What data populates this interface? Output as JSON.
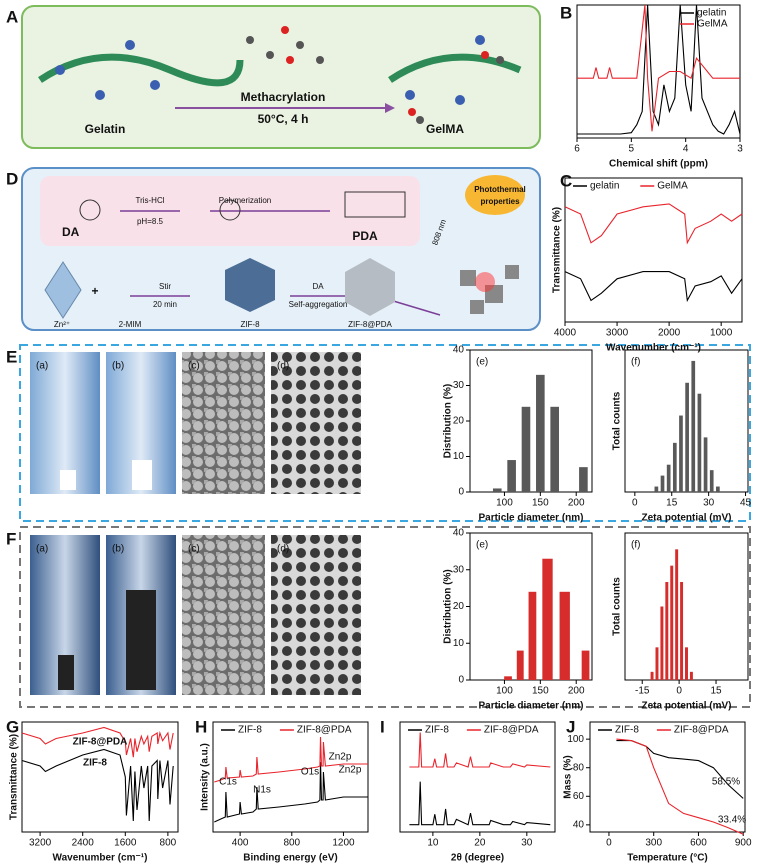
{
  "figure": {
    "panel_labels": [
      "A",
      "B",
      "C",
      "D",
      "E",
      "F",
      "G",
      "H",
      "I",
      "J"
    ],
    "A": {
      "left": "Gelatin",
      "arrow_top": "Methacrylation",
      "arrow_bottom": "50°C, 4 h",
      "right": "GelMA"
    },
    "D": {
      "da": "DA",
      "tris": "Tris-HCl",
      "ph": "pH=8.5",
      "poly": "Polymerization",
      "pda": "PDA",
      "zn": "Zn²⁺",
      "mim": "2-MIM",
      "stir": "Stir",
      "time": "20 min",
      "zif": "ZIF-8",
      "da2": "DA",
      "self": "Self-aggregation",
      "zifpda": "ZIF-8@PDA",
      "nm": "808 nm",
      "photo1": "Photothermal",
      "photo2": "properties",
      "plus": "+"
    },
    "E": {
      "image_labels": [
        "(a)",
        "(b)",
        "(c)",
        "(d)"
      ]
    },
    "F": {
      "image_labels": [
        "(a)",
        "(b)",
        "(c)",
        "(d)"
      ]
    }
  },
  "chart_data": [
    {
      "type": "line",
      "xlabel": "Chemical shift (ppm)",
      "xlim": [
        6,
        3
      ],
      "ylim": [
        0,
        10
      ],
      "xticks": [
        6,
        5,
        4,
        3
      ],
      "legend": "upper right",
      "series": [
        {
          "name": "gelatin",
          "color": "#000000",
          "x": [
            6,
            5.5,
            5.2,
            5,
            4.9,
            4.8,
            4.7,
            4.6,
            4.5,
            4.4,
            4.3,
            4.2,
            4.1,
            4,
            3.9,
            3.8,
            3.7,
            3.6,
            3.5,
            3.4,
            3.3,
            3.2,
            3.1,
            3
          ],
          "values": [
            0.3,
            0.3,
            0.3,
            0.4,
            1,
            2,
            10,
            2,
            1,
            4,
            2,
            3,
            10,
            4,
            2,
            10,
            3,
            2,
            1,
            0.5,
            0.3,
            1,
            2,
            0.3
          ]
        },
        {
          "name": "GelMA",
          "color": "#e8242c",
          "x": [
            6,
            5.7,
            5.65,
            5.6,
            5.45,
            5.4,
            5.35,
            4.9,
            4.75,
            4.7,
            4.62,
            4.5,
            4.3,
            4.1,
            3.9,
            3.8,
            3.5,
            3
          ],
          "values": [
            4.5,
            4.5,
            5.3,
            4.5,
            4.5,
            5.3,
            4.5,
            4.5,
            10,
            4.5,
            0.5,
            4.5,
            5,
            5,
            4.5,
            6,
            4.5,
            4.5
          ]
        }
      ]
    },
    {
      "type": "line",
      "xlabel": "Wavenumber (cm⁻¹)",
      "ylabel": "Transmittance (%)",
      "xlim": [
        4000,
        600
      ],
      "ylim": [
        0,
        10
      ],
      "xticks": [
        4000,
        3000,
        2000,
        1000
      ],
      "legend": "top",
      "series": [
        {
          "name": "gelatin",
          "color": "#000000",
          "x": [
            4000,
            3700,
            3500,
            3300,
            3000,
            2500,
            2000,
            1700,
            1650,
            1500,
            1200,
            1000,
            800,
            600
          ],
          "values": [
            3.5,
            3,
            1.5,
            2,
            3,
            3.5,
            3.5,
            3,
            1.5,
            2.5,
            2.8,
            3.2,
            2,
            3
          ]
        },
        {
          "name": "GelMA",
          "color": "#e8242c",
          "x": [
            4000,
            3700,
            3500,
            3300,
            3000,
            2500,
            2000,
            1700,
            1650,
            1500,
            1200,
            1000,
            800,
            600
          ],
          "values": [
            8,
            7.5,
            5.5,
            6,
            7.5,
            8,
            8.2,
            7.5,
            5.5,
            6.5,
            7,
            7.5,
            7,
            7.5
          ]
        }
      ]
    },
    {
      "type": "histogram",
      "label": "(e)",
      "xlabel": "Particle diameter (nm)",
      "ylabel": "Distribution (%)",
      "xlim": [
        52,
        222
      ],
      "ylim": [
        0,
        40
      ],
      "xticks": [
        100,
        150,
        200
      ],
      "yticks": [
        0,
        10,
        20,
        30,
        40
      ],
      "color": "#595959",
      "bins": [
        80,
        100,
        120,
        140,
        160,
        180,
        200,
        220
      ],
      "counts": [
        1,
        9,
        24,
        33,
        24,
        0,
        7
      ]
    },
    {
      "type": "histogram",
      "label": "(f)",
      "xlabel": "Zeta potential (mV)",
      "ylabel": "Total counts",
      "xlim": [
        -4,
        46
      ],
      "ylim": [
        0,
        26
      ],
      "xticks": [
        0,
        15,
        30,
        45
      ],
      "color": "#595959",
      "bins": [
        7.5,
        10,
        12.5,
        15,
        17.5,
        20,
        22.5,
        25,
        27.5,
        30,
        32.5,
        35
      ],
      "counts": [
        1,
        3,
        5,
        9,
        14,
        20,
        24,
        18,
        10,
        4,
        1
      ]
    },
    {
      "type": "histogram",
      "label": "(e)",
      "xlabel": "Particle diameter (nm)",
      "ylabel": "Distribution (%)",
      "xlim": [
        52,
        222
      ],
      "ylim": [
        0,
        40
      ],
      "xticks": [
        100,
        150,
        200
      ],
      "yticks": [
        0,
        10,
        20,
        30,
        40
      ],
      "color": "#d62c2c",
      "bins": [
        96,
        114,
        130,
        148,
        172,
        196,
        204,
        222
      ],
      "counts": [
        1,
        8,
        24,
        33,
        24,
        0,
        8
      ]
    },
    {
      "type": "histogram",
      "label": "(f)",
      "xlabel": "Zeta potential (mV)",
      "ylabel": "Total counts",
      "xlim": [
        -22,
        28
      ],
      "ylim": [
        0,
        18
      ],
      "xticks": [
        -15,
        0,
        15
      ],
      "color": "#d62c2c",
      "bins": [
        -12,
        -10,
        -8,
        -6,
        -4,
        -2,
        0,
        2,
        4,
        6
      ],
      "counts": [
        1,
        4,
        9,
        12,
        14,
        16,
        12,
        4,
        1
      ]
    },
    {
      "type": "line",
      "xlabel": "Wavenumber (cm⁻¹)",
      "ylabel": "Transmittance (%)",
      "xlim": [
        3540,
        610
      ],
      "ylim": [
        0,
        10
      ],
      "xticks": [
        3200,
        2400,
        1600,
        800
      ],
      "annotations": [
        "ZIF-8@PDA",
        "ZIF-8"
      ],
      "series": [
        {
          "name": "ZIF-8",
          "color": "#000000",
          "x": [
            3540,
            3200,
            3100,
            2900,
            2400,
            2000,
            1700,
            1600,
            1580,
            1500,
            1450,
            1420,
            1380,
            1300,
            1250,
            1180,
            1150,
            1100,
            1000,
            990,
            950,
            900,
            800,
            760,
            700
          ],
          "values": [
            6.5,
            6,
            5.5,
            6,
            7,
            7.5,
            7,
            5,
            1.5,
            6,
            1,
            5.5,
            2,
            6,
            4,
            6,
            1,
            6,
            6.5,
            3,
            6.5,
            4,
            6.5,
            2.5,
            6
          ]
        },
        {
          "name": "ZIF-8@PDA",
          "color": "#e8242c",
          "x": [
            3540,
            3200,
            3100,
            2900,
            2400,
            2000,
            1700,
            1600,
            1580,
            1500,
            1450,
            1420,
            1380,
            1300,
            1250,
            1180,
            1150,
            1100,
            1000,
            990,
            950,
            900,
            800,
            760,
            700
          ],
          "values": [
            9,
            8.5,
            8,
            8.5,
            9,
            9.5,
            9,
            8.2,
            7,
            8.5,
            6.8,
            8.5,
            7.3,
            8.7,
            8,
            8.7,
            7.3,
            8.7,
            9,
            8,
            9,
            8.3,
            9,
            7.5,
            9
          ]
        }
      ]
    },
    {
      "type": "line",
      "xlabel": "Binding energy (eV)",
      "ylabel": "Intensity (a.u.)",
      "xlim": [
        190,
        1390
      ],
      "ylim": [
        0,
        11
      ],
      "xticks": [
        400,
        800,
        1200
      ],
      "legend": "top",
      "annotations": [
        "C1s",
        "N1s",
        "O1s",
        "Zn2p",
        "Zn2p"
      ],
      "series": [
        {
          "name": "ZIF-8",
          "color": "#000000",
          "x": [
            200,
            250,
            285,
            290,
            300,
            395,
            400,
            410,
            500,
            525,
            530,
            540,
            700,
            900,
            1000,
            1018,
            1022,
            1030,
            1042,
            1045,
            1060,
            1200,
            1390
          ],
          "values": [
            1,
            1.3,
            1.5,
            4,
            1.5,
            1.8,
            3,
            1.8,
            2,
            2.3,
            4.5,
            2.3,
            2.5,
            2.8,
            3,
            3.2,
            7,
            3.2,
            3.2,
            6,
            3.2,
            3.5,
            3.5
          ]
        },
        {
          "name": "ZIF-8@PDA",
          "color": "#e8242c",
          "x": [
            200,
            250,
            285,
            290,
            300,
            395,
            400,
            410,
            500,
            525,
            530,
            540,
            700,
            900,
            1000,
            1018,
            1022,
            1030,
            1042,
            1045,
            1060,
            1200,
            1390
          ],
          "values": [
            5,
            5.2,
            5.4,
            6.5,
            5.4,
            5.5,
            6.2,
            5.5,
            5.6,
            5.8,
            7.5,
            5.8,
            6,
            6.3,
            6.5,
            6.6,
            9.5,
            6.6,
            6.6,
            9,
            6.6,
            6.8,
            6.8
          ]
        }
      ]
    },
    {
      "type": "line",
      "xlabel": "2θ (degree)",
      "xlim": [
        3,
        36
      ],
      "ylim": [
        0,
        10.5
      ],
      "xticks": [
        10,
        20,
        30
      ],
      "legend": "top",
      "series": [
        {
          "name": "ZIF-8",
          "color": "#000000",
          "x": [
            5,
            7,
            7.3,
            7.6,
            10,
            10.4,
            10.8,
            12.3,
            12.7,
            13.1,
            14.5,
            15,
            17.5,
            18,
            18.5,
            22,
            22.3,
            25,
            26.5,
            27,
            29.5,
            30,
            35
          ],
          "values": [
            0.7,
            0.7,
            4.8,
            0.7,
            0.7,
            1.7,
            0.7,
            0.7,
            2.2,
            0.7,
            0.7,
            1.2,
            0.7,
            1.8,
            0.7,
            0.7,
            1.1,
            0.7,
            0.7,
            1,
            0.7,
            0.9,
            0.7
          ]
        },
        {
          "name": "ZIF-8@PDA",
          "color": "#e8242c",
          "x": [
            5,
            7,
            7.3,
            7.6,
            10,
            10.4,
            10.8,
            12.3,
            12.7,
            13.1,
            14.5,
            15,
            17.5,
            18,
            18.5,
            22,
            22.3,
            25,
            26.5,
            27,
            29.5,
            30,
            35
          ],
          "values": [
            6.2,
            6.2,
            9.5,
            6.2,
            6.2,
            7,
            6.2,
            6.2,
            7.5,
            6.2,
            6.2,
            6.6,
            6.2,
            7.2,
            6.2,
            6.2,
            6.6,
            6.2,
            6.2,
            6.5,
            6.2,
            6.4,
            6.2
          ]
        }
      ]
    },
    {
      "type": "line",
      "xlabel": "Temperature (°C)",
      "ylabel": "Mass (%)",
      "xlim": [
        -127,
        912
      ],
      "ylim": [
        35,
        112
      ],
      "xticks": [
        0,
        300,
        600,
        900
      ],
      "yticks": [
        40,
        60,
        80,
        100
      ],
      "legend": "top",
      "annotations": [
        "58.5%",
        "33.4%"
      ],
      "series": [
        {
          "name": "ZIF-8",
          "color": "#000000",
          "x": [
            50,
            150,
            250,
            300,
            400,
            500,
            600,
            700,
            800,
            900
          ],
          "values": [
            99,
            99,
            95,
            90,
            87,
            86,
            85,
            80,
            68,
            58.5
          ]
        },
        {
          "name": "ZIF-8@PDA",
          "color": "#e8242c",
          "x": [
            50,
            150,
            250,
            300,
            400,
            500,
            600,
            700,
            800,
            900
          ],
          "values": [
            100,
            99,
            95,
            80,
            55,
            48,
            45,
            42,
            38,
            33.4
          ]
        }
      ]
    }
  ]
}
